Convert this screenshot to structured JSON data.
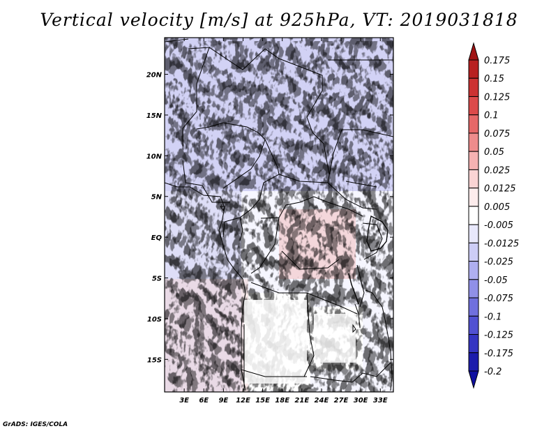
{
  "title": "Vertical velocity [m/s] at 925hPa, VT: 2019031818",
  "credit": "GrADS: IGES/COLA",
  "map": {
    "lat_labels": [
      "20N",
      "15N",
      "10N",
      "5N",
      "EQ",
      "5S",
      "10S",
      "15S"
    ],
    "lon_labels": [
      "3E",
      "6E",
      "9E",
      "12E",
      "15E",
      "18E",
      "21E",
      "24E",
      "27E",
      "30E",
      "33E"
    ],
    "extent": {
      "lon_min": 0,
      "lon_max": 35,
      "lat_min": -19,
      "lat_max": 24.5
    },
    "field_colors": {
      "positive": "#e06a6a",
      "negative": "#6f6fe0",
      "neutral": "#ffffff"
    }
  },
  "colorbar": {
    "levels": [
      "0.175",
      "0.15",
      "0.125",
      "0.1",
      "0.075",
      "0.05",
      "0.025",
      "0.0125",
      "0.005",
      "-0.005",
      "-0.0125",
      "-0.025",
      "-0.05",
      "-0.075",
      "-0.1",
      "-0.125",
      "-0.175",
      "-0.2"
    ],
    "colors": [
      "#a01414",
      "#b82020",
      "#cc3232",
      "#dc4a4a",
      "#e66868",
      "#ee8c8c",
      "#f5b2b2",
      "#fad4d4",
      "#fdecec",
      "#ffffff",
      "#e8e8fb",
      "#cdcdf6",
      "#afaff0",
      "#9090e8",
      "#7070de",
      "#5151d2",
      "#3535c2",
      "#1c1cac",
      "#1010a0"
    ]
  }
}
